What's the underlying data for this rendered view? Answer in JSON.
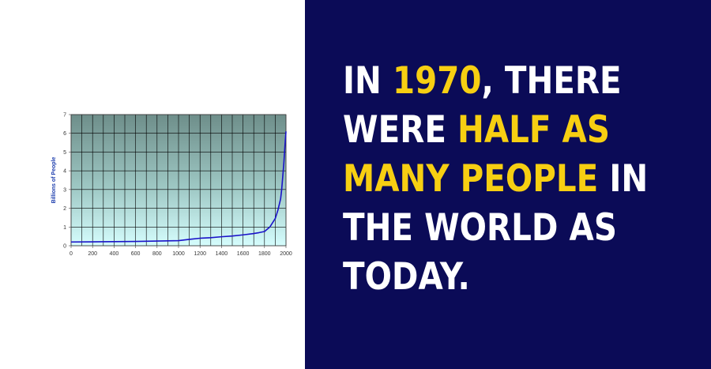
{
  "colors": {
    "left_bg": "#ffffff",
    "right_bg": "#0b0b57",
    "text": "#ffffff",
    "highlight": "#f7cf12",
    "line": "#1a12c9",
    "grid": "#000000",
    "label": "#1f3fae"
  },
  "chart_data": {
    "type": "line",
    "ylabel": "Billions of People",
    "xlabel": "",
    "title": "",
    "xlim": [
      0,
      2000
    ],
    "ylim": [
      0,
      7
    ],
    "x_ticks": [
      0,
      200,
      400,
      600,
      800,
      1000,
      1200,
      1400,
      1600,
      1800,
      2000
    ],
    "y_ticks": [
      0,
      1,
      2,
      3,
      4,
      5,
      6,
      7
    ],
    "grid": true,
    "x_grid": [
      0,
      100,
      200,
      300,
      400,
      500,
      600,
      700,
      800,
      900,
      1000,
      1100,
      1200,
      1300,
      1400,
      1500,
      1600,
      1700,
      1800,
      1900,
      2000
    ],
    "series": [
      {
        "x": [
          0,
          200,
          400,
          600,
          800,
          1000,
          1100,
          1200,
          1300,
          1400,
          1500,
          1600,
          1700,
          1750,
          1800,
          1850,
          1900,
          1925,
          1950,
          1960,
          1970,
          1980,
          1990,
          2000
        ],
        "values": [
          0.2,
          0.21,
          0.22,
          0.23,
          0.25,
          0.27,
          0.34,
          0.4,
          0.43,
          0.48,
          0.52,
          0.58,
          0.65,
          0.7,
          0.76,
          1.0,
          1.45,
          1.9,
          2.5,
          3.0,
          3.7,
          4.4,
          5.3,
          6.1
        ]
      }
    ]
  },
  "headline": {
    "line1_a": "IN ",
    "line1_b": "1970",
    "line1_c": ", THERE",
    "line2_a": "WERE ",
    "line2_b": "HALF AS",
    "line3_a": "MANY PEOPLE",
    "line3_b": " IN",
    "line4": "THE WORLD AS",
    "line5": "TODAY."
  }
}
